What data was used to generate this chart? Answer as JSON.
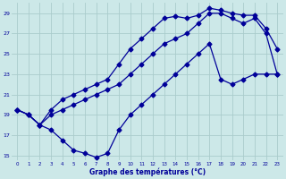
{
  "xlabel": "Graphe des températures (°C)",
  "bg_color": "#cce8e8",
  "grid_color": "#aacccc",
  "line_color": "#000099",
  "series_dip_x": [
    0,
    1,
    2,
    3,
    4,
    5,
    6,
    7,
    8,
    9,
    10,
    11,
    12,
    13,
    14,
    15,
    16,
    17,
    18,
    19,
    20,
    21,
    22,
    23
  ],
  "series_dip_y": [
    19.5,
    19.0,
    18.0,
    17.5,
    16.5,
    15.5,
    15.2,
    14.8,
    15.2,
    17.5,
    19.0,
    20.0,
    21.0,
    22.0,
    23.0,
    24.0,
    25.0,
    26.0,
    22.5,
    22.0,
    22.5,
    23.0,
    23.0,
    23.0
  ],
  "series_top_x": [
    0,
    1,
    2,
    3,
    4,
    5,
    6,
    7,
    8,
    9,
    10,
    11,
    12,
    13,
    14,
    15,
    16,
    17,
    18,
    19,
    20,
    21,
    22,
    23
  ],
  "series_top_y": [
    19.5,
    19.0,
    18.0,
    19.5,
    20.5,
    21.0,
    21.5,
    22.0,
    22.5,
    24.0,
    25.5,
    26.5,
    27.5,
    28.5,
    28.7,
    28.5,
    28.8,
    29.5,
    29.3,
    29.0,
    28.8,
    28.8,
    27.5,
    25.5
  ],
  "series_mid_x": [
    0,
    1,
    2,
    3,
    4,
    5,
    6,
    7,
    8,
    9,
    10,
    11,
    12,
    13,
    14,
    15,
    16,
    17,
    18,
    19,
    20,
    21,
    22,
    23
  ],
  "series_mid_y": [
    19.5,
    19.0,
    18.0,
    19.0,
    19.5,
    20.0,
    20.5,
    21.0,
    21.5,
    22.0,
    23.0,
    24.0,
    25.0,
    26.0,
    26.5,
    27.0,
    28.0,
    29.0,
    29.0,
    28.5,
    28.0,
    28.5,
    27.0,
    23.0
  ],
  "ylim": [
    14.5,
    30.0
  ],
  "xlim": [
    -0.5,
    23.5
  ],
  "yticks": [
    15,
    17,
    19,
    21,
    23,
    25,
    27,
    29
  ],
  "xticks": [
    0,
    1,
    2,
    3,
    4,
    5,
    6,
    7,
    8,
    9,
    10,
    11,
    12,
    13,
    14,
    15,
    16,
    17,
    18,
    19,
    20,
    21,
    22,
    23
  ]
}
